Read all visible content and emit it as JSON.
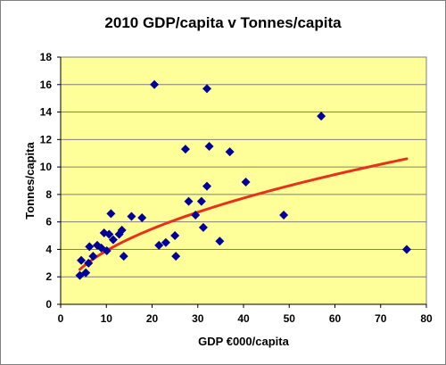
{
  "chart_data": {
    "type": "scatter",
    "title": "2010 GDP/capita v Tonnes/capita",
    "xlabel": "GDP €000/capita",
    "ylabel": "Tonnes/capita",
    "xlim": [
      0,
      80
    ],
    "ylim": [
      0,
      18
    ],
    "xticks": [
      0,
      10,
      20,
      30,
      40,
      50,
      60,
      70,
      80
    ],
    "yticks": [
      0,
      2,
      4,
      6,
      8,
      10,
      12,
      14,
      16,
      18
    ],
    "grid": "horizontal",
    "colors": {
      "plot_background": "#ffff99",
      "points": "#000099",
      "trend": "#e8311a",
      "grid": "#7f7f7f"
    },
    "points": [
      {
        "x": 4.2,
        "y": 2.1
      },
      {
        "x": 4.5,
        "y": 3.2
      },
      {
        "x": 5.5,
        "y": 2.3
      },
      {
        "x": 6.1,
        "y": 3.0
      },
      {
        "x": 6.3,
        "y": 4.2
      },
      {
        "x": 7.1,
        "y": 3.5
      },
      {
        "x": 8.0,
        "y": 4.3
      },
      {
        "x": 8.9,
        "y": 4.1
      },
      {
        "x": 9.5,
        "y": 5.2
      },
      {
        "x": 10.1,
        "y": 3.9
      },
      {
        "x": 10.6,
        "y": 5.1
      },
      {
        "x": 11.0,
        "y": 6.6
      },
      {
        "x": 11.5,
        "y": 4.7
      },
      {
        "x": 12.8,
        "y": 5.1
      },
      {
        "x": 13.4,
        "y": 5.4
      },
      {
        "x": 13.8,
        "y": 3.5
      },
      {
        "x": 15.5,
        "y": 6.4
      },
      {
        "x": 17.8,
        "y": 6.3
      },
      {
        "x": 20.5,
        "y": 16.0
      },
      {
        "x": 21.5,
        "y": 4.3
      },
      {
        "x": 23.0,
        "y": 4.5
      },
      {
        "x": 25.0,
        "y": 5.0
      },
      {
        "x": 25.2,
        "y": 3.5
      },
      {
        "x": 27.3,
        "y": 11.3
      },
      {
        "x": 28.0,
        "y": 7.5
      },
      {
        "x": 29.5,
        "y": 6.5
      },
      {
        "x": 30.8,
        "y": 7.5
      },
      {
        "x": 31.2,
        "y": 5.6
      },
      {
        "x": 32.0,
        "y": 8.6
      },
      {
        "x": 32.0,
        "y": 15.7
      },
      {
        "x": 32.5,
        "y": 11.5
      },
      {
        "x": 34.8,
        "y": 4.6
      },
      {
        "x": 37.0,
        "y": 11.1
      },
      {
        "x": 40.5,
        "y": 8.9
      },
      {
        "x": 48.8,
        "y": 6.5
      },
      {
        "x": 57.0,
        "y": 13.7
      },
      {
        "x": 75.7,
        "y": 4.0
      }
    ],
    "trendline": {
      "type": "power",
      "a": 1.25,
      "b": 0.494,
      "x_range": [
        4.2,
        75.7
      ]
    }
  }
}
